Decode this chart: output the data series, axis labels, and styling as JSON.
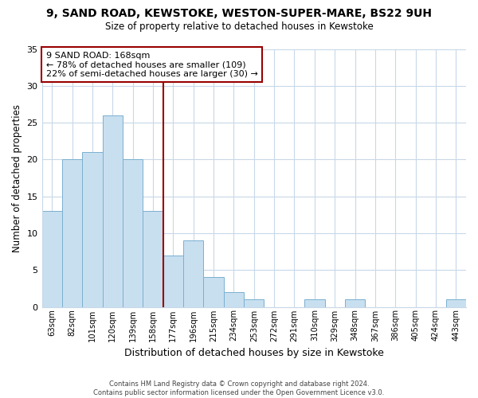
{
  "title": "9, SAND ROAD, KEWSTOKE, WESTON-SUPER-MARE, BS22 9UH",
  "subtitle": "Size of property relative to detached houses in Kewstoke",
  "xlabel": "Distribution of detached houses by size in Kewstoke",
  "ylabel": "Number of detached properties",
  "bar_color": "#c8dff0",
  "bar_edge_color": "#7ab0d0",
  "categories": [
    "63sqm",
    "82sqm",
    "101sqm",
    "120sqm",
    "139sqm",
    "158sqm",
    "177sqm",
    "196sqm",
    "215sqm",
    "234sqm",
    "253sqm",
    "272sqm",
    "291sqm",
    "310sqm",
    "329sqm",
    "348sqm",
    "367sqm",
    "386sqm",
    "405sqm",
    "424sqm",
    "443sqm"
  ],
  "values": [
    13,
    20,
    21,
    26,
    20,
    13,
    7,
    9,
    4,
    2,
    1,
    0,
    0,
    1,
    0,
    1,
    0,
    0,
    0,
    0,
    1
  ],
  "vline_x": 6,
  "vline_color": "#990000",
  "annotation_text": "9 SAND ROAD: 168sqm\n← 78% of detached houses are smaller (109)\n22% of semi-detached houses are larger (30) →",
  "annotation_box_color": "white",
  "annotation_box_edge_color": "#990000",
  "ylim": [
    0,
    35
  ],
  "yticks": [
    0,
    5,
    10,
    15,
    20,
    25,
    30,
    35
  ],
  "footer": "Contains HM Land Registry data © Crown copyright and database right 2024.\nContains public sector information licensed under the Open Government Licence v3.0.",
  "background_color": "white",
  "grid_color": "#c8d8e8"
}
